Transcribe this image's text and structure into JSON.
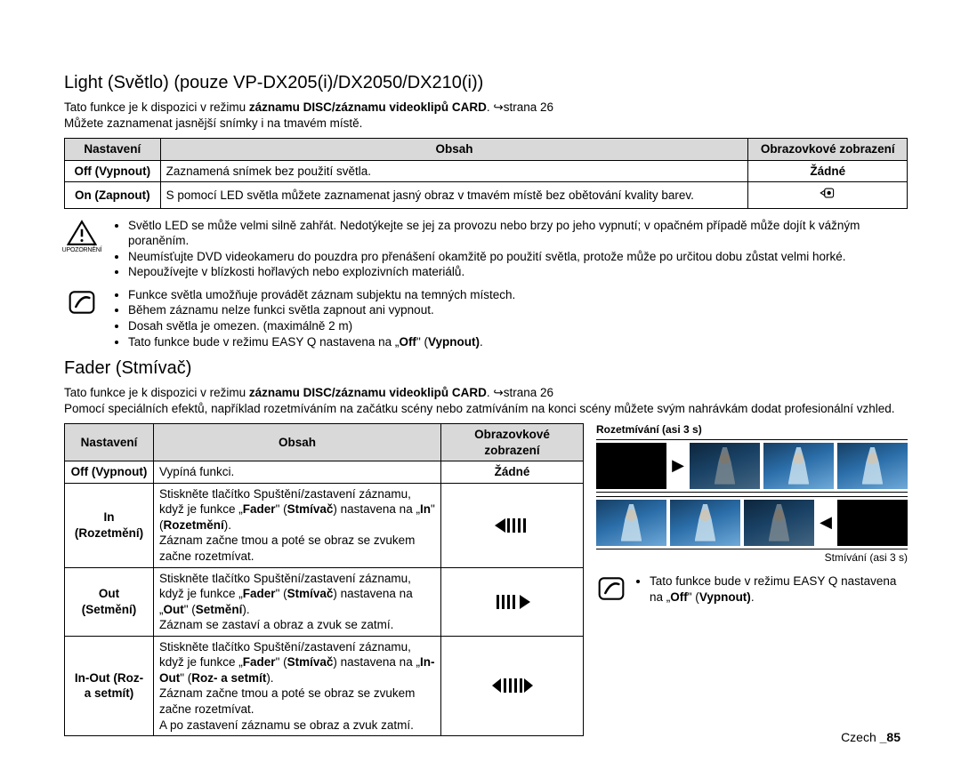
{
  "light": {
    "title": "Light (Světlo) (pouze VP-DX205(i)/DX2050/DX210(i))",
    "intro_parts": [
      "Tato funkce je k dispozici v režimu ",
      "záznamu DISC/záznamu videoklipů CARD",
      ". ↪strana 26"
    ],
    "intro2": "Můžete zaznamenat jasnější snímky i na tmavém místě.",
    "headers": {
      "c1": "Nastavení",
      "c2": "Obsah",
      "c3": "Obrazovkové zobrazení"
    },
    "rows": [
      {
        "setting": "Off (Vypnout)",
        "desc": "Zaznamená snímek bez použití světla.",
        "display": "Žádné"
      },
      {
        "setting": "On (Zapnout)",
        "desc": "S pomocí LED světla můžete zaznamenat jasný obraz v tmavém místě bez obětování kvality barev.",
        "display_icon": true
      }
    ],
    "warning_label": "UPOZORNĚNÍ",
    "warnings": [
      "Světlo LED se může velmi silně zahřát. Nedotýkejte se jej za provozu nebo brzy po jeho vypnutí; v opačném případě může dojít k vážným poraněním.",
      "Neumísťujte DVD videokameru do pouzdra pro přenášení okamžitě po použití světla, protože může po určitou dobu zůstat velmi horké.",
      "Nepoužívejte v blízkosti hořlavých nebo explozivních materiálů."
    ],
    "notes": [
      "Funkce světla umožňuje provádět záznam subjektu na temných místech.",
      "Během záznamu nelze funkci světla zapnout ani vypnout.",
      "Dosah světla je omezen. (maximálně 2 m)",
      "Tato funkce bude v režimu EASY Q nastavena na „<b>Off</b>\" (<b>Vypnout)</b>."
    ]
  },
  "fader": {
    "title": "Fader (Stmívač)",
    "intro_parts": [
      "Tato funkce je k dispozici v režimu ",
      "záznamu DISC/záznamu videoklipů CARD",
      ". ↪strana 26"
    ],
    "intro2": "Pomocí speciálních efektů, například rozetmíváním na začátku scény nebo zatmíváním na konci scény můžete svým nahrávkám dodat profesionální vzhled.",
    "headers": {
      "c1": "Nastavení",
      "c2": "Obsah",
      "c3": "Obrazovkové zobrazení"
    },
    "rows": [
      {
        "setting": "Off (Vypnout)",
        "desc": "Vypíná funkci.",
        "display": "Žádné"
      },
      {
        "setting": "In (Rozetmění)",
        "desc": "Stiskněte tlačítko Spuštění/zastavení záznamu, když je funkce „<b>Fader</b>\" (<b>Stmívač</b>) nastavena na „<b>In</b>\" (<b>Rozetmění</b>).<br>Záznam začne tmou a poté se obraz se zvukem začne rozetmívat.",
        "icon": "in"
      },
      {
        "setting": "Out (Setmění)",
        "desc": "Stiskněte tlačítko Spuštění/zastavení záznamu, když je funkce „<b>Fader</b>\" (<b>Stmívač</b>) nastavena na „<b>Out</b>\" (<b>Setmění</b>).<br>Záznam se zastaví a obraz a zvuk se zatmí.",
        "icon": "out"
      },
      {
        "setting": "In-Out (Roz- a setmít)",
        "desc": "Stiskněte tlačítko Spuštění/zastavení záznamu, když je funkce „<b>Fader</b>\" (<b>Stmívač</b>) nastavena na „<b>In-Out</b>\" (<b>Roz- a setmít</b>).<br>Záznam začne tmou a poté se obraz se zvukem začne rozetmívat.<br>A po zastavení záznamu se obraz a zvuk zatmí.",
        "icon": "inout"
      }
    ],
    "right_caption_top": "Rozetmívání (asi 3 s)",
    "right_caption_bottom": "Stmívání (asi 3 s)",
    "side_note": "Tato funkce bude v režimu EASY Q nastavena na „<b>Off</b>\" (<b>Vypnout)</b>."
  },
  "footer": {
    "lang": "Czech",
    "page": "_85"
  }
}
